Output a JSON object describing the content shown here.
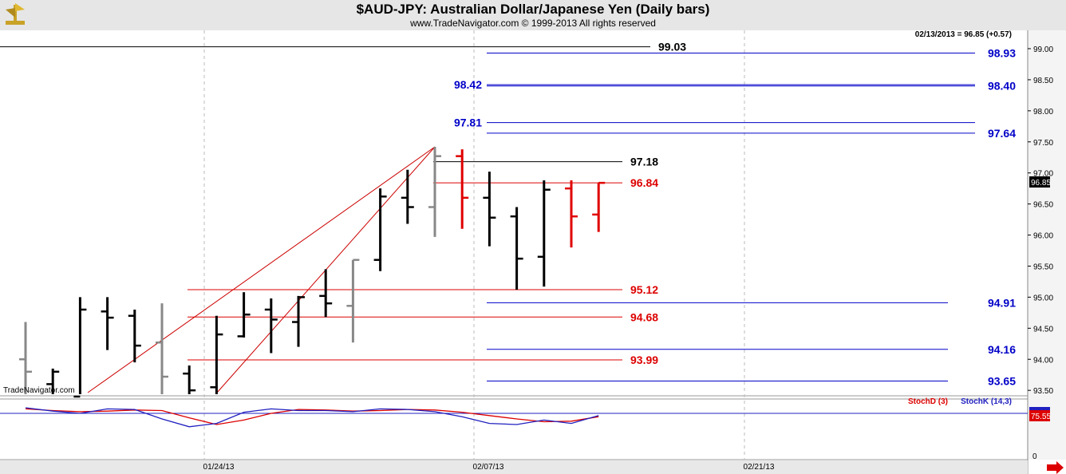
{
  "header": {
    "title": "$AUD-JPY:  Australian Dollar/Japanese Yen  (Daily bars)",
    "subtitle": "www.TradeNavigator.com © 1999-2013 All rights reserved",
    "last_quote": "02/13/2013 = 96.85 (+0.57)",
    "watermark": "TradeNavigator.com",
    "logo_icon": "trade-navigator-logo-icon"
  },
  "colors": {
    "up_bar": "#000000",
    "old_bar": "#888888",
    "down_bar": "#e00000",
    "blue_level": "#0000c8",
    "red_level": "#dd0000",
    "gann_fan": "#cc0000",
    "stoch_d": "#dd0000",
    "stoch_k": "#2020c0"
  },
  "chart_data": [
    {
      "type": "ohlc",
      "ylim": [
        93.3,
        99.3
      ],
      "y_ticks": [
        "99.00",
        "98.50",
        "98.00",
        "97.50",
        "97.00",
        "96.50",
        "96.00",
        "95.50",
        "95.00",
        "94.50",
        "94.00",
        "93.50"
      ],
      "x_ticks": [
        "01/24/13",
        "02/07/13",
        "02/21/13"
      ],
      "last_price_label": "96.85",
      "bars": [
        {
          "o": 94.0,
          "h": 94.6,
          "l": 93.3,
          "c": 93.8,
          "color": "gray"
        },
        {
          "o": 93.6,
          "h": 93.85,
          "l": 93.3,
          "c": 93.8,
          "color": "black"
        },
        {
          "o": 93.4,
          "h": 95.0,
          "l": 93.3,
          "c": 94.8,
          "color": "black"
        },
        {
          "o": 94.77,
          "h": 95.0,
          "l": 94.15,
          "c": 94.67,
          "color": "black"
        },
        {
          "o": 94.7,
          "h": 94.8,
          "l": 93.95,
          "c": 94.22,
          "color": "black"
        },
        {
          "o": 94.27,
          "h": 94.9,
          "l": 93.3,
          "c": 93.72,
          "color": "gray"
        },
        {
          "o": 93.77,
          "h": 93.9,
          "l": 93.3,
          "c": 93.5,
          "color": "black"
        },
        {
          "o": 93.55,
          "h": 94.7,
          "l": 93.3,
          "c": 94.4,
          "color": "black"
        },
        {
          "o": 94.37,
          "h": 95.08,
          "l": 94.35,
          "c": 94.72,
          "color": "black"
        },
        {
          "o": 94.8,
          "h": 94.98,
          "l": 94.1,
          "c": 94.64,
          "color": "black"
        },
        {
          "o": 94.6,
          "h": 95.02,
          "l": 94.2,
          "c": 95.0,
          "color": "black"
        },
        {
          "o": 95.02,
          "h": 95.45,
          "l": 94.68,
          "c": 94.9,
          "color": "black"
        },
        {
          "o": 94.86,
          "h": 95.6,
          "l": 94.27,
          "c": 95.6,
          "color": "gray"
        },
        {
          "o": 95.6,
          "h": 96.75,
          "l": 95.42,
          "c": 96.62,
          "color": "black"
        },
        {
          "o": 96.6,
          "h": 97.05,
          "l": 96.18,
          "c": 96.45,
          "color": "black"
        },
        {
          "o": 96.45,
          "h": 97.42,
          "l": 95.97,
          "c": 97.27,
          "color": "gray"
        },
        {
          "o": 97.27,
          "h": 97.38,
          "l": 96.1,
          "c": 96.6,
          "color": "red"
        },
        {
          "o": 96.6,
          "h": 97.02,
          "l": 95.82,
          "c": 96.28,
          "color": "black"
        },
        {
          "o": 96.3,
          "h": 96.45,
          "l": 95.12,
          "c": 95.62,
          "color": "black"
        },
        {
          "o": 95.65,
          "h": 96.88,
          "l": 95.17,
          "c": 96.73,
          "color": "black"
        },
        {
          "o": 96.75,
          "h": 96.88,
          "l": 95.8,
          "c": 96.3,
          "color": "red"
        },
        {
          "o": 96.33,
          "h": 96.84,
          "l": 96.05,
          "c": 96.84,
          "color": "red"
        }
      ],
      "levels": [
        {
          "value": 99.03,
          "label": "99.03",
          "color": "black",
          "x_from": 0,
          "x_to": 815,
          "label_at": "right-end"
        },
        {
          "value": 98.93,
          "label": "98.93",
          "color": "blue",
          "x_from": 610,
          "x_to": 1222,
          "label_at": "far-right"
        },
        {
          "value": 98.42,
          "label": "98.42",
          "color": "blue",
          "x_from": 610,
          "x_to": 1222,
          "label_at": "left"
        },
        {
          "value": 98.4,
          "label": "98.40",
          "color": "blue",
          "x_from": 610,
          "x_to": 1222,
          "label_at": "far-right"
        },
        {
          "value": 97.81,
          "label": "97.81",
          "color": "blue",
          "x_from": 610,
          "x_to": 1222,
          "label_at": "left"
        },
        {
          "value": 97.64,
          "label": "97.64",
          "color": "blue",
          "x_from": 610,
          "x_to": 1222,
          "label_at": "far-right"
        },
        {
          "value": 97.18,
          "label": "97.18",
          "color": "black",
          "x_from": 543,
          "x_to": 780,
          "label_at": "right-end"
        },
        {
          "value": 96.84,
          "label": "96.84",
          "color": "red",
          "x_from": 543,
          "x_to": 780,
          "label_at": "right-end"
        },
        {
          "value": 95.12,
          "label": "95.12",
          "color": "red",
          "x_from": 235,
          "x_to": 780,
          "label_at": "right-end"
        },
        {
          "value": 94.91,
          "label": "94.91",
          "color": "blue",
          "x_from": 610,
          "x_to": 1188,
          "label_at": "far-right"
        },
        {
          "value": 94.68,
          "label": "94.68",
          "color": "red",
          "x_from": 235,
          "x_to": 780,
          "label_at": "right-end"
        },
        {
          "value": 94.16,
          "label": "94.16",
          "color": "blue",
          "x_from": 610,
          "x_to": 1188,
          "label_at": "far-right"
        },
        {
          "value": 93.99,
          "label": "93.99",
          "color": "red",
          "x_from": 235,
          "x_to": 780,
          "label_at": "right-end"
        },
        {
          "value": 93.65,
          "label": "93.65",
          "color": "blue",
          "x_from": 610,
          "x_to": 1188,
          "label_at": "far-right"
        }
      ]
    },
    {
      "type": "line",
      "ylim": [
        0,
        100
      ],
      "y_ticks": [
        "0"
      ],
      "last_value_label": "75.55",
      "series": [
        {
          "name": "StochD (3)",
          "color": "red",
          "values": [
            88,
            85,
            83,
            84,
            86,
            85,
            72,
            60,
            68,
            80,
            87,
            86,
            84,
            85,
            87,
            86,
            82,
            76,
            70,
            65,
            66,
            74
          ]
        },
        {
          "name": "StochK (14,3)",
          "color": "blue",
          "values": [
            90,
            84,
            80,
            88,
            87,
            70,
            56,
            62,
            82,
            88,
            85,
            85,
            83,
            88,
            87,
            83,
            74,
            62,
            60,
            68,
            62,
            76
          ]
        }
      ]
    }
  ]
}
